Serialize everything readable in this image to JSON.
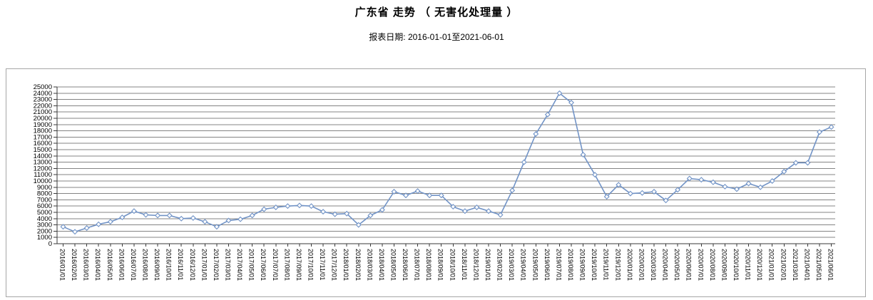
{
  "header": {
    "title": "广东省 走势 （ 无害化处理量 ）",
    "subtitle": "报表日期: 2016-01-01至2021-06-01"
  },
  "chart_data": {
    "type": "line",
    "title": "广东省 走势 （ 无害化处理量 ）",
    "subtitle": "报表日期: 2016-01-01至2021-06-01",
    "xlabel": "",
    "ylabel": "",
    "ylim": [
      0,
      25000
    ],
    "ytick_step": 1000,
    "grid": true,
    "legend_position": "none",
    "line_color": "#7193c6",
    "marker": "diamond-hollow",
    "marker_fill": "#ffffff",
    "grid_color": "#848484",
    "axis_color": "#3a3a3a",
    "frame_color": "#a6a6a6",
    "x": [
      "2016/01/01",
      "2016/02/01",
      "2016/03/01",
      "2016/04/01",
      "2016/05/01",
      "2016/06/01",
      "2016/07/01",
      "2016/08/01",
      "2016/09/01",
      "2016/10/01",
      "2016/11/01",
      "2016/12/01",
      "2017/01/01",
      "2017/02/01",
      "2017/03/01",
      "2017/04/01",
      "2017/05/01",
      "2017/06/01",
      "2017/07/01",
      "2017/08/01",
      "2017/09/01",
      "2017/10/01",
      "2017/11/01",
      "2017/12/01",
      "2018/01/01",
      "2018/02/01",
      "2018/03/01",
      "2018/04/01",
      "2018/05/01",
      "2018/06/01",
      "2018/07/01",
      "2018/08/01",
      "2018/09/01",
      "2018/10/01",
      "2018/11/01",
      "2018/12/01",
      "2019/01/01",
      "2019/02/01",
      "2019/03/01",
      "2019/04/01",
      "2019/05/01",
      "2019/06/01",
      "2019/07/01",
      "2019/08/01",
      "2019/09/01",
      "2019/10/01",
      "2019/11/01",
      "2019/12/01",
      "2020/01/01",
      "2020/02/01",
      "2020/03/01",
      "2020/04/01",
      "2020/05/01",
      "2020/06/01",
      "2020/07/01",
      "2020/08/01",
      "2020/09/01",
      "2020/10/01",
      "2020/11/01",
      "2020/12/01",
      "2021/01/01",
      "2021/02/01",
      "2021/03/01",
      "2021/04/01",
      "2021/05/01",
      "2021/06/01"
    ],
    "series": [
      {
        "name": "无害化处理量",
        "values": [
          2700,
          1900,
          2500,
          3100,
          3500,
          4200,
          5200,
          4600,
          4500,
          4500,
          4000,
          4100,
          3500,
          2700,
          3700,
          3900,
          4500,
          5500,
          5800,
          6000,
          6100,
          6000,
          5100,
          4700,
          4800,
          3000,
          4500,
          5400,
          8300,
          7700,
          8400,
          7700,
          7700,
          5900,
          5200,
          5800,
          5200,
          4600,
          8500,
          13000,
          17500,
          20600,
          24000,
          22500,
          14200,
          11000,
          7500,
          9400,
          8000,
          8100,
          8300,
          6900,
          8600,
          10400,
          10200,
          9800,
          9100,
          8700,
          9600,
          9000,
          10000,
          11500,
          12900,
          12900,
          17800,
          18600
        ]
      }
    ]
  }
}
